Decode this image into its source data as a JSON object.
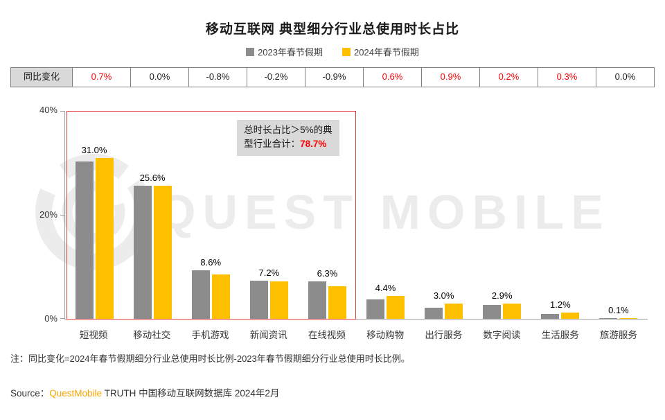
{
  "title": "移动互联网 典型细分行业总使用时长占比",
  "legend": [
    {
      "label": "2023年春节假期",
      "color": "#8C8C8C"
    },
    {
      "label": "2024年春节假期",
      "color": "#FFC000"
    }
  ],
  "yoy_row": {
    "header": "同比变化",
    "values": [
      "0.7%",
      "0.0%",
      "-0.8%",
      "-0.2%",
      "-0.9%",
      "0.6%",
      "0.9%",
      "0.2%",
      "0.3%",
      "0.0%"
    ],
    "red_flags": [
      true,
      false,
      false,
      false,
      false,
      true,
      true,
      true,
      true,
      false
    ]
  },
  "chart_data": {
    "type": "bar",
    "categories": [
      "短视频",
      "移动社交",
      "手机游戏",
      "新闻资讯",
      "在线视频",
      "移动购物",
      "出行服务",
      "数字阅读",
      "生活服务",
      "旅游服务"
    ],
    "series": [
      {
        "name": "2023年春节假期",
        "color": "#8C8C8C",
        "values": [
          30.3,
          25.6,
          9.4,
          7.4,
          7.2,
          3.8,
          2.1,
          2.7,
          0.9,
          0.1
        ]
      },
      {
        "name": "2024年春节假期",
        "color": "#FFC000",
        "values": [
          31.0,
          25.6,
          8.6,
          7.2,
          6.3,
          4.4,
          3.0,
          2.9,
          1.2,
          0.1
        ]
      }
    ],
    "labels": [
      "31.0%",
      "25.6%",
      "8.6%",
      "7.2%",
      "6.3%",
      "4.4%",
      "3.0%",
      "2.9%",
      "1.2%",
      "0.1%"
    ],
    "ylim": [
      0,
      40
    ],
    "yticks": [
      "40%",
      "20%",
      "0%"
    ],
    "legend_position": "top",
    "grid": false,
    "highlight_box_categories": 5
  },
  "annotation": {
    "line1": "总时长占比＞5%的典",
    "line2": "型行业合计：",
    "value": "78.7%"
  },
  "watermark": "QUEST MOBILE",
  "note": "注：同比变化=2024年春节假期细分行业总使用时长比例-2023年春节假期细分行业总使用时长比例。",
  "source": {
    "label": "Source：",
    "brand": "QuestMobile",
    "rest": " TRUTH 中国移动互联网数据库 2024年2月"
  }
}
